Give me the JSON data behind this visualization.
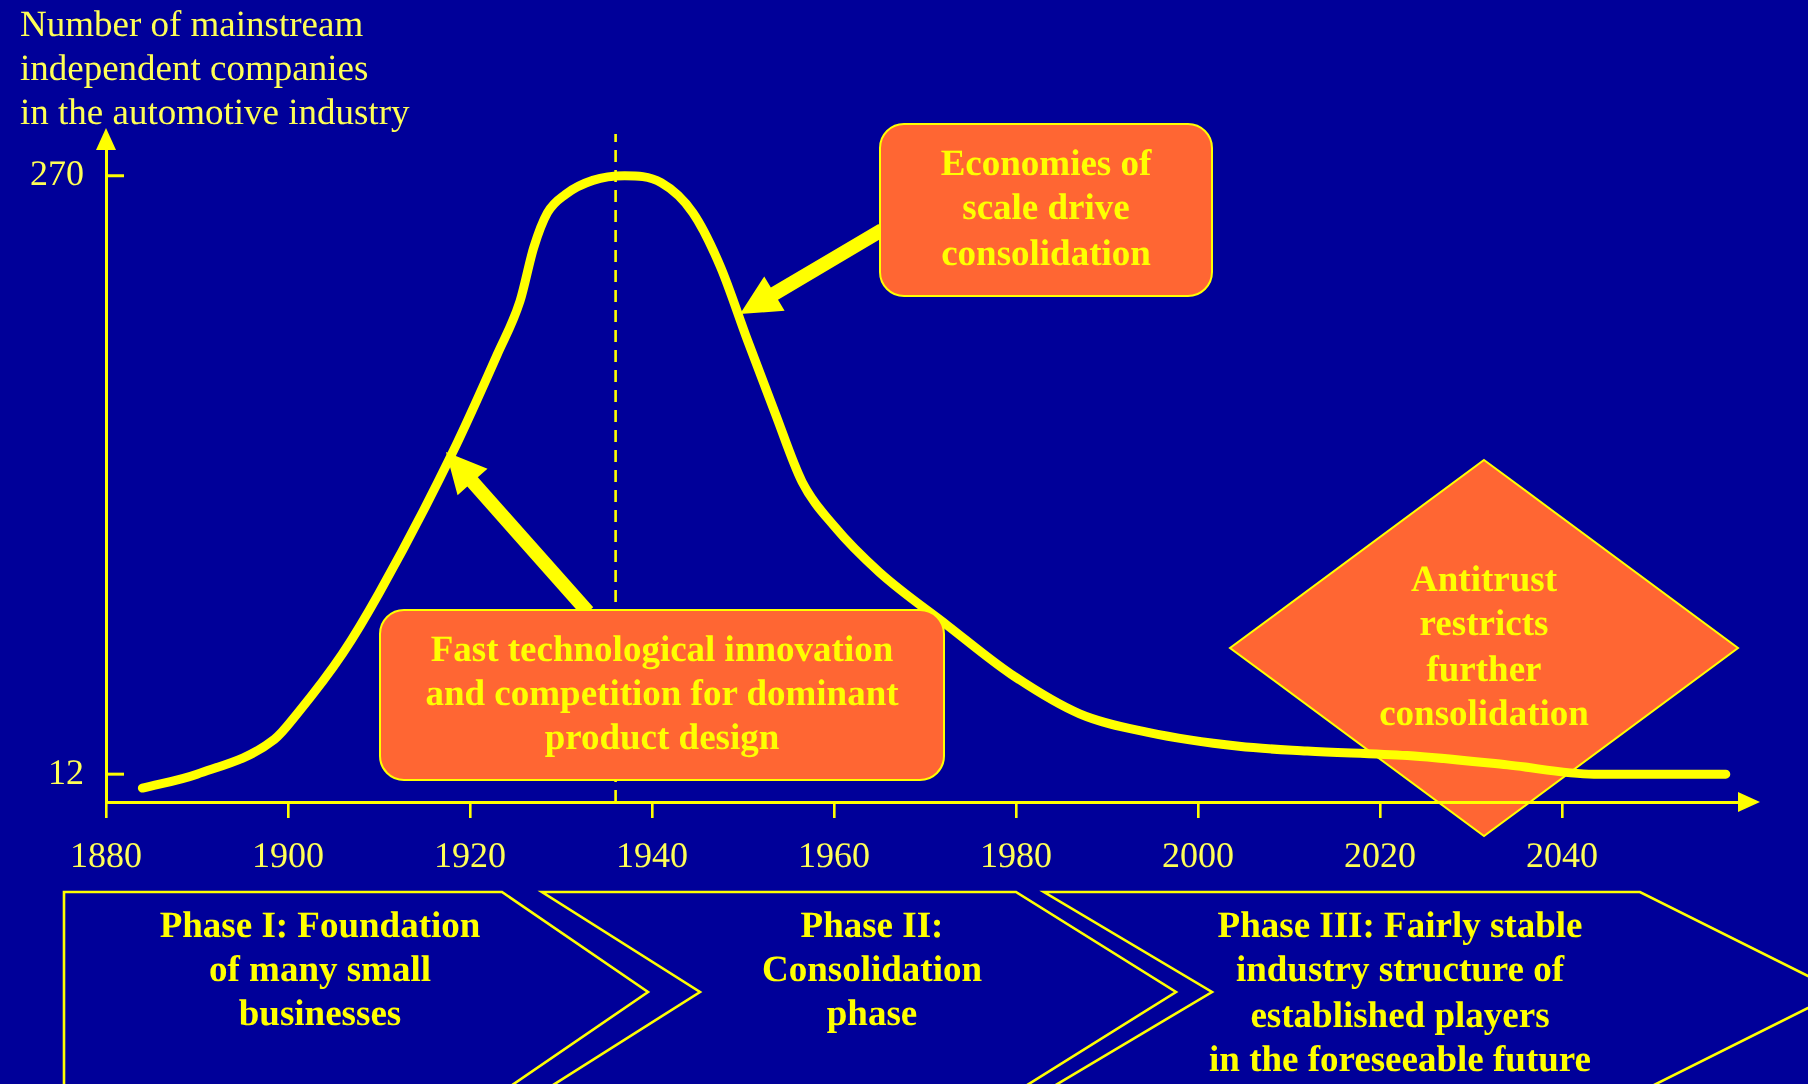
{
  "chart_data": {
    "type": "line",
    "ylabel": "Number of mainstream\nindependent companies\nin the automotive industry",
    "x": [
      1884,
      1890,
      1898.5,
      1901,
      1906,
      1910,
      1918,
      1923,
      1925.5,
      1927,
      1928.5,
      1930.5,
      1933.5,
      1937,
      1941,
      1944.5,
      1947.5,
      1950.5,
      1953.5,
      1956.5,
      1960,
      1965,
      1972.5,
      1979.5,
      1987,
      1994.5,
      2004.5,
      2012,
      2023,
      2034,
      2043.5,
      2058
    ],
    "series": [
      {
        "color": "#ffff00",
        "values": [
          6,
          12,
          27,
          38,
          64,
          90,
          150,
          193,
          216,
          239,
          254,
          262,
          268,
          270,
          267,
          254,
          231,
          199,
          168,
          138,
          119,
          99,
          76,
          55,
          38,
          30,
          24,
          22,
          20,
          16,
          12,
          12
        ]
      }
    ],
    "xlim": [
      1880,
      2060
    ],
    "xticks": [
      1880,
      1900,
      1920,
      1940,
      1960,
      1980,
      2000,
      2020,
      2040
    ],
    "ylim": [
      0,
      288
    ],
    "yticks": [
      12,
      270
    ],
    "ref_lines": [
      {
        "axis": "x",
        "value": 1936,
        "color": "#ffff00",
        "line_style": "dashed"
      }
    ],
    "annotations": [
      "Fast technological innovation\nand competition for dominant\nproduct design",
      "Economies of\nscale drive\nconsolidation",
      "Antitrust\nrestricts\nfurther\nconsolidation",
      "Phase I: Foundation\nof many small\nbusinesses",
      "Phase II:\nConsolidation\nphase",
      "Phase III: Fairly stable\nindustry structure of\nestablished players\nin the foreseeable future"
    ]
  }
}
